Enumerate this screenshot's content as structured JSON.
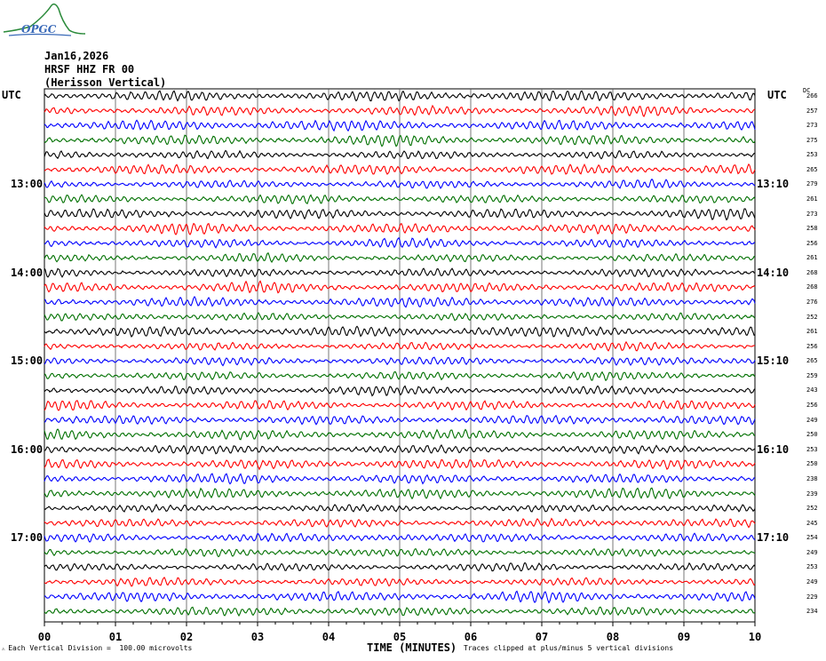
{
  "logo": {
    "text": "OPGC"
  },
  "header": {
    "date": "Jan16,2026",
    "station": "HRSF HHZ FR 00",
    "location": "(Herisson Vertical)"
  },
  "utc_left": "UTC",
  "utc_right": "UTC",
  "dc_header": "DC",
  "footer": {
    "scale": "Each Vertical Division =  100.00 microvolts",
    "clip": "Traces clipped at plus/minus 5 vertical divisions",
    "xlabel": "TIME (MINUTES)"
  },
  "colors": {
    "cycle": [
      "#000000",
      "#ff0000",
      "#0000ff",
      "#007000"
    ],
    "grid": "#000000"
  },
  "chart_data": {
    "type": "line",
    "xlabel": "TIME (MINUTES)",
    "x_ticks": [
      "00",
      "01",
      "02",
      "03",
      "04",
      "05",
      "06",
      "07",
      "08",
      "09",
      "10"
    ],
    "xlim": [
      0,
      10
    ],
    "left_hour_labels": [
      "13:00",
      "14:00",
      "15:00",
      "16:00",
      "17:00"
    ],
    "right_hour_labels": [
      "13:10",
      "14:10",
      "15:10",
      "16:10",
      "17:10"
    ],
    "trace_minutes": 10,
    "trace_count": 36,
    "dc_offsets": [
      266,
      257,
      273,
      275,
      253,
      265,
      279,
      261,
      273,
      258,
      256,
      261,
      268,
      268,
      276,
      252,
      261,
      256,
      265,
      259,
      243,
      256,
      249,
      250,
      253,
      250,
      238,
      239,
      252,
      245,
      254,
      249,
      253,
      249,
      229,
      234
    ],
    "amplitude_units": "microvolts",
    "vertical_division": 100.0
  }
}
